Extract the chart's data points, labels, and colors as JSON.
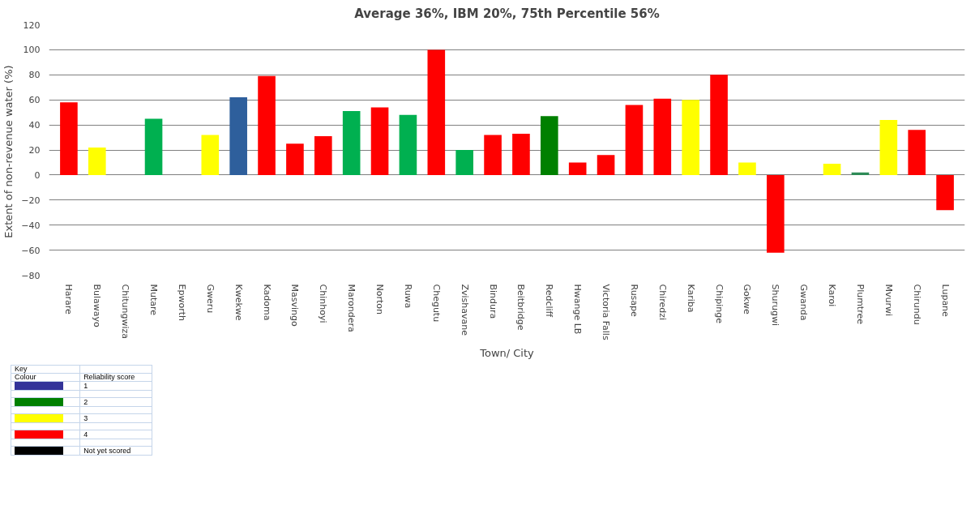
{
  "chart_data": {
    "type": "bar",
    "title": "Average 36%, IBM 20%, 75th Percentile 56%",
    "xlabel": "Town/ City",
    "ylabel": "Extent of non-revenue water  (%)",
    "categories": [
      "Harare",
      "Bulawayo",
      "Chitungwiza",
      "Mutare",
      "Epworth",
      "Gweru",
      "Kwekwe",
      "Kadoma",
      "Masvingo",
      "Chinhoyi",
      "Marondera",
      "Norton",
      "Ruwa",
      "Chegutu",
      "Zvishavane",
      "Bindura",
      "Beitbridge",
      "Redcliff",
      "Hwange LB",
      "Victoria Falls",
      "Rusape",
      "Chiredzi",
      "Kariba",
      "Chipinge",
      "Gokwe",
      "Shurugwi",
      "Gwanda",
      "Karoi",
      "Plumtree",
      "Mvurwi",
      "Chirundu",
      "Lupane"
    ],
    "values": [
      58,
      22,
      null,
      45,
      null,
      32,
      62,
      79,
      25,
      31,
      51,
      54,
      48,
      100,
      20,
      32,
      33,
      47,
      10,
      16,
      56,
      61,
      60,
      80,
      10,
      -62,
      null,
      9,
      2,
      44,
      36,
      -28
    ],
    "colors": [
      "#ff0000",
      "#ffff00",
      "#ffffff",
      "#00b050",
      "#ffffff",
      "#ffff00",
      "#2e5f9c",
      "#ff0000",
      "#ff0000",
      "#ff0000",
      "#00b050",
      "#ff0000",
      "#00b050",
      "#ff0000",
      "#00b050",
      "#ff0000",
      "#ff0000",
      "#008000",
      "#ff0000",
      "#ff0000",
      "#ff0000",
      "#ff0000",
      "#ffff00",
      "#ff0000",
      "#ffff00",
      "#ff0000",
      "#ffffff",
      "#ffff00",
      "#2e8b57",
      "#ffff00",
      "#ff0000",
      "#ff0000"
    ],
    "ylim": [
      -80,
      120
    ],
    "yticks": [
      -80,
      -60,
      -40,
      -20,
      0,
      20,
      40,
      60,
      80,
      100,
      120
    ],
    "grid": "y",
    "annotations": [
      "Key",
      "Colour",
      "Reliability score",
      "1",
      "2",
      "3",
      "4",
      "Not yet scored"
    ]
  }
}
